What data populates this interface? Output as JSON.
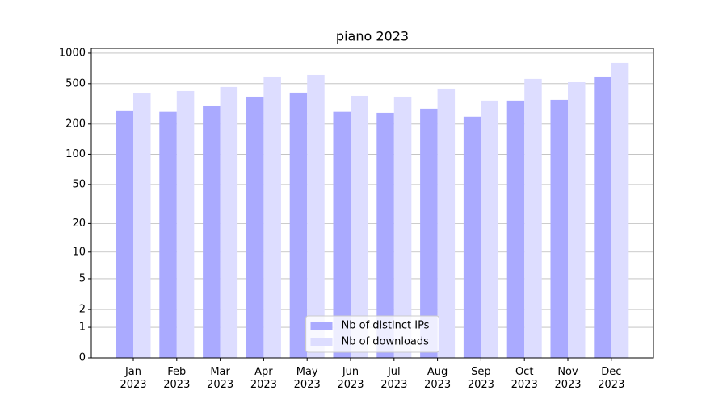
{
  "chart_data": {
    "type": "bar",
    "title": "piano 2023",
    "yscale": "log1p",
    "categories": [
      "Jan 2023",
      "Feb 2023",
      "Mar 2023",
      "Apr 2023",
      "May 2023",
      "Jun 2023",
      "Jul 2023",
      "Aug 2023",
      "Sep 2023",
      "Oct 2023",
      "Nov 2023",
      "Dec 2023"
    ],
    "series": [
      {
        "name": "Nb of distinct IPs",
        "color": "#aaaaff",
        "values": [
          268,
          264,
          304,
          372,
          408,
          264,
          258,
          283,
          236,
          340,
          346,
          588
        ]
      },
      {
        "name": "Nb of downloads",
        "color": "#ddddff",
        "values": [
          401,
          423,
          464,
          588,
          610,
          379,
          372,
          447,
          340,
          557,
          517,
          803
        ]
      }
    ],
    "ylim": [
      0,
      1115
    ],
    "yticks": [
      0,
      1,
      2,
      5,
      10,
      20,
      50,
      100,
      200,
      500,
      1000
    ],
    "grid": true,
    "legend": "lower center"
  }
}
